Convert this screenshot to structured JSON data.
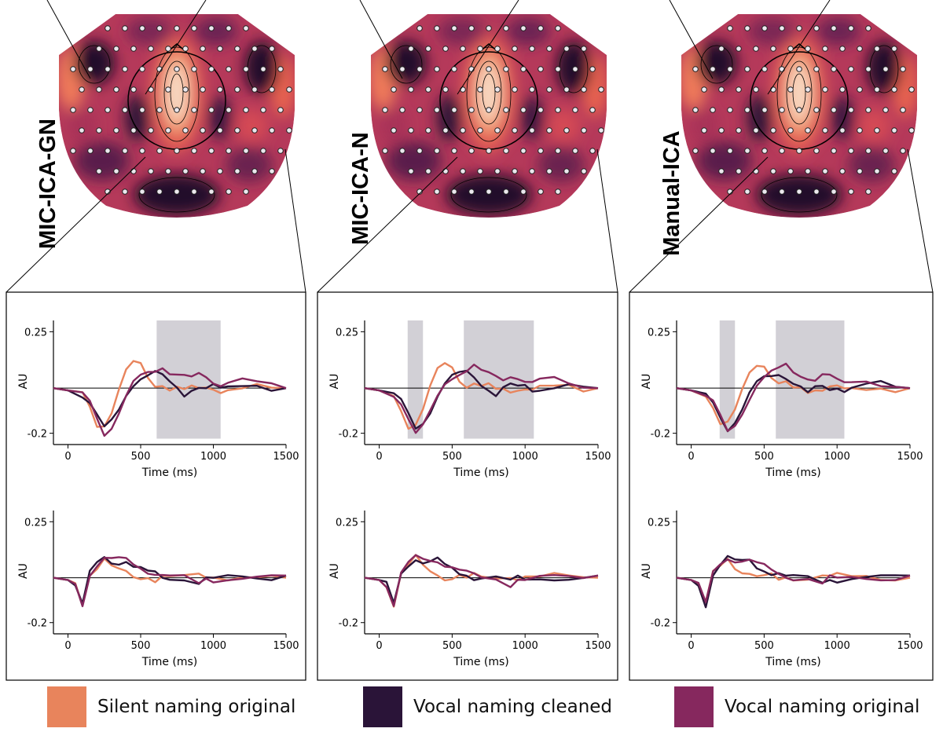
{
  "figure": {
    "colors": {
      "silent_original": "#e8845c",
      "vocal_cleaned": "#2a1438",
      "vocal_original": "#86285e",
      "significance_shade": "#d2d0d6",
      "topo_high": "#f6d8c4",
      "topo_mid": "#d94456",
      "topo_low": "#200c2c"
    },
    "legend": [
      {
        "label": "Silent naming original",
        "color": "#e8845c"
      },
      {
        "label": "Vocal naming cleaned",
        "color": "#2a1438"
      },
      {
        "label": "Vocal naming original",
        "color": "#86285e"
      }
    ]
  },
  "chart_data": [
    {
      "type": "line",
      "panel": "MIC-ICA-GN",
      "method_label": "MIC-ICA-GN",
      "plot": "upper",
      "xlabel": "Time (ms)",
      "ylabel": "AU",
      "xticks": [
        0,
        500,
        1000,
        1500
      ],
      "yticks": [
        0.25,
        -0.2
      ],
      "xlim": [
        -100,
        1500
      ],
      "ylim": [
        -0.25,
        0.3
      ],
      "shaded_intervals": [
        [
          610,
          1050
        ]
      ],
      "x": [
        -100,
        0,
        100,
        150,
        200,
        250,
        300,
        350,
        400,
        450,
        500,
        550,
        600,
        650,
        700,
        750,
        800,
        850,
        900,
        950,
        1000,
        1050,
        1100,
        1200,
        1300,
        1400,
        1500
      ],
      "series": [
        {
          "name": "Silent naming original",
          "values": [
            0.0,
            -0.01,
            -0.03,
            -0.09,
            -0.17,
            -0.16,
            -0.1,
            0.0,
            0.08,
            0.11,
            0.1,
            0.04,
            0.01,
            0.02,
            0.0,
            0.01,
            -0.01,
            0.0,
            -0.01,
            0.0,
            0.0,
            -0.01,
            0.0,
            0.0,
            0.01,
            -0.01,
            0.0
          ]
        },
        {
          "name": "Vocal naming cleaned",
          "values": [
            0.0,
            -0.01,
            -0.03,
            -0.06,
            -0.12,
            -0.18,
            -0.15,
            -0.1,
            -0.03,
            0.02,
            0.05,
            0.06,
            0.07,
            0.05,
            0.02,
            0.0,
            -0.03,
            0.0,
            0.01,
            0.0,
            0.01,
            -0.01,
            0.0,
            0.01,
            0.02,
            0.0,
            0.0
          ]
        },
        {
          "name": "Vocal naming original",
          "values": [
            0.0,
            -0.01,
            -0.03,
            -0.06,
            -0.13,
            -0.2,
            -0.17,
            -0.11,
            -0.04,
            0.02,
            0.05,
            0.07,
            0.08,
            0.1,
            0.07,
            0.06,
            0.05,
            0.04,
            0.06,
            0.05,
            0.03,
            0.02,
            0.03,
            0.04,
            0.02,
            0.01,
            0.0
          ]
        }
      ]
    },
    {
      "type": "line",
      "panel": "MIC-ICA-GN",
      "plot": "lower",
      "xlabel": "Time (ms)",
      "ylabel": "AU",
      "xticks": [
        0,
        500,
        1000,
        1500
      ],
      "yticks": [
        0.25,
        -0.2
      ],
      "xlim": [
        -100,
        1500
      ],
      "ylim": [
        -0.25,
        0.3
      ],
      "shaded_intervals": [],
      "x": [
        -100,
        0,
        50,
        100,
        150,
        200,
        250,
        300,
        350,
        400,
        450,
        500,
        550,
        600,
        650,
        700,
        800,
        900,
        950,
        1000,
        1100,
        1200,
        1300,
        1400,
        1500
      ],
      "series": [
        {
          "name": "Silent naming original",
          "values": [
            0.0,
            -0.01,
            -0.03,
            -0.12,
            0.02,
            0.05,
            0.09,
            0.05,
            0.03,
            0.02,
            0.0,
            0.0,
            0.01,
            -0.01,
            0.01,
            0.0,
            0.0,
            0.01,
            0.0,
            0.01,
            0.0,
            0.01,
            0.0,
            0.0,
            0.0
          ]
        },
        {
          "name": "Vocal naming cleaned",
          "values": [
            0.0,
            -0.01,
            -0.03,
            -0.12,
            0.02,
            0.06,
            0.09,
            0.07,
            0.07,
            0.08,
            0.05,
            0.04,
            0.02,
            0.02,
            0.0,
            0.0,
            0.0,
            -0.02,
            0.0,
            -0.01,
            0.0,
            0.0,
            0.0,
            0.0,
            0.01
          ]
        },
        {
          "name": "Vocal naming original",
          "values": [
            0.0,
            -0.01,
            -0.03,
            -0.12,
            0.02,
            0.06,
            0.09,
            0.08,
            0.08,
            0.08,
            0.06,
            0.05,
            0.03,
            0.02,
            0.01,
            0.0,
            0.0,
            -0.03,
            0.0,
            -0.01,
            0.0,
            0.0,
            0.0,
            0.0,
            0.01
          ]
        }
      ]
    },
    {
      "type": "line",
      "panel": "MIC-ICA-N",
      "method_label": "MIC-ICA-N",
      "plot": "upper",
      "xlabel": "Time (ms)",
      "ylabel": "AU",
      "xticks": [
        0,
        500,
        1000,
        1500
      ],
      "yticks": [
        0.25,
        -0.2
      ],
      "xlim": [
        -100,
        1500
      ],
      "ylim": [
        -0.25,
        0.3
      ],
      "shaded_intervals": [
        [
          195,
          300
        ],
        [
          580,
          1060
        ]
      ],
      "x": [
        -100,
        0,
        100,
        150,
        200,
        250,
        300,
        350,
        400,
        450,
        500,
        550,
        600,
        650,
        700,
        750,
        800,
        850,
        900,
        950,
        1000,
        1050,
        1100,
        1200,
        1300,
        1400,
        1500
      ],
      "series": [
        {
          "name": "Silent naming original",
          "values": [
            0.0,
            -0.01,
            -0.03,
            -0.09,
            -0.17,
            -0.16,
            -0.1,
            0.0,
            0.08,
            0.11,
            0.1,
            0.04,
            0.01,
            0.02,
            0.0,
            0.01,
            -0.01,
            0.0,
            -0.01,
            0.0,
            0.0,
            -0.01,
            0.0,
            0.0,
            0.01,
            -0.01,
            0.0
          ]
        },
        {
          "name": "Vocal naming cleaned",
          "values": [
            0.0,
            -0.01,
            -0.03,
            -0.06,
            -0.12,
            -0.18,
            -0.15,
            -0.1,
            -0.03,
            0.02,
            0.05,
            0.06,
            0.07,
            0.05,
            0.02,
            0.0,
            -0.03,
            0.0,
            0.01,
            0.0,
            0.01,
            -0.01,
            0.0,
            0.01,
            0.02,
            0.0,
            0.0
          ]
        },
        {
          "name": "Vocal naming original",
          "values": [
            0.0,
            -0.01,
            -0.03,
            -0.06,
            -0.13,
            -0.2,
            -0.17,
            -0.11,
            -0.04,
            0.02,
            0.05,
            0.07,
            0.08,
            0.1,
            0.07,
            0.06,
            0.05,
            0.04,
            0.06,
            0.05,
            0.03,
            0.02,
            0.03,
            0.04,
            0.02,
            0.01,
            0.0
          ]
        }
      ]
    },
    {
      "type": "line",
      "panel": "MIC-ICA-N",
      "plot": "lower",
      "xlabel": "Time (ms)",
      "ylabel": "AU",
      "xticks": [
        0,
        500,
        1000,
        1500
      ],
      "yticks": [
        0.25,
        -0.2
      ],
      "xlim": [
        -100,
        1500
      ],
      "ylim": [
        -0.25,
        0.3
      ],
      "shaded_intervals": [],
      "x": [
        -100,
        0,
        50,
        100,
        150,
        200,
        250,
        300,
        350,
        400,
        450,
        500,
        550,
        600,
        650,
        700,
        800,
        900,
        950,
        1000,
        1100,
        1200,
        1300,
        1400,
        1500
      ],
      "series": [
        {
          "name": "Silent naming original",
          "values": [
            0.0,
            -0.01,
            -0.03,
            -0.12,
            0.02,
            0.05,
            0.09,
            0.05,
            0.03,
            0.02,
            0.0,
            0.0,
            0.01,
            -0.01,
            0.01,
            0.0,
            0.0,
            0.01,
            0.0,
            0.01,
            0.0,
            0.01,
            0.0,
            0.0,
            0.0
          ]
        },
        {
          "name": "Vocal naming cleaned",
          "values": [
            0.0,
            -0.01,
            -0.03,
            -0.12,
            0.02,
            0.06,
            0.09,
            0.07,
            0.07,
            0.08,
            0.05,
            0.04,
            0.02,
            0.02,
            0.0,
            0.0,
            0.0,
            -0.02,
            0.0,
            -0.01,
            0.0,
            0.0,
            0.0,
            0.0,
            0.01
          ]
        },
        {
          "name": "Vocal naming original",
          "values": [
            0.0,
            -0.01,
            -0.03,
            -0.12,
            0.02,
            0.06,
            0.09,
            0.08,
            0.08,
            0.08,
            0.06,
            0.05,
            0.03,
            0.02,
            0.01,
            0.0,
            0.0,
            -0.03,
            0.0,
            -0.01,
            0.0,
            0.0,
            0.0,
            0.0,
            0.01
          ]
        }
      ]
    },
    {
      "type": "line",
      "panel": "Manual-ICA",
      "method_label": "Manual-ICA",
      "plot": "upper",
      "xlabel": "Time (ms)",
      "ylabel": "AU",
      "xticks": [
        0,
        500,
        1000,
        1500
      ],
      "yticks": [
        0.25,
        -0.2
      ],
      "xlim": [
        -100,
        1500
      ],
      "ylim": [
        -0.25,
        0.3
      ],
      "shaded_intervals": [
        [
          195,
          300
        ],
        [
          580,
          1050
        ]
      ],
      "x": [
        -100,
        0,
        100,
        150,
        200,
        250,
        300,
        350,
        400,
        450,
        500,
        550,
        600,
        650,
        700,
        750,
        800,
        850,
        900,
        950,
        1000,
        1050,
        1100,
        1200,
        1300,
        1400,
        1500
      ],
      "series": [
        {
          "name": "Silent naming original",
          "values": [
            0.0,
            -0.01,
            -0.03,
            -0.09,
            -0.17,
            -0.16,
            -0.1,
            0.0,
            0.08,
            0.11,
            0.1,
            0.04,
            0.01,
            0.02,
            0.0,
            0.01,
            -0.01,
            0.0,
            -0.01,
            0.0,
            0.0,
            -0.01,
            0.0,
            0.0,
            0.01,
            -0.01,
            0.0
          ]
        },
        {
          "name": "Vocal naming cleaned",
          "values": [
            0.0,
            -0.01,
            -0.03,
            -0.06,
            -0.12,
            -0.18,
            -0.15,
            -0.1,
            -0.03,
            0.02,
            0.05,
            0.06,
            0.07,
            0.05,
            0.02,
            0.0,
            -0.03,
            0.0,
            0.01,
            0.0,
            0.01,
            -0.01,
            0.0,
            0.01,
            0.02,
            0.0,
            0.0
          ]
        },
        {
          "name": "Vocal naming original",
          "values": [
            0.0,
            -0.01,
            -0.03,
            -0.06,
            -0.13,
            -0.2,
            -0.17,
            -0.11,
            -0.04,
            0.02,
            0.05,
            0.07,
            0.08,
            0.1,
            0.07,
            0.06,
            0.05,
            0.04,
            0.06,
            0.05,
            0.03,
            0.02,
            0.03,
            0.04,
            0.02,
            0.01,
            0.0
          ]
        }
      ]
    },
    {
      "type": "line",
      "panel": "Manual-ICA",
      "plot": "lower",
      "xlabel": "Time (ms)",
      "ylabel": "AU",
      "xticks": [
        0,
        500,
        1000,
        1500
      ],
      "yticks": [
        0.25,
        -0.2
      ],
      "xlim": [
        -100,
        1500
      ],
      "ylim": [
        -0.25,
        0.3
      ],
      "shaded_intervals": [],
      "x": [
        -100,
        0,
        50,
        100,
        150,
        200,
        250,
        300,
        350,
        400,
        450,
        500,
        550,
        600,
        650,
        700,
        800,
        900,
        950,
        1000,
        1100,
        1200,
        1300,
        1400,
        1500
      ],
      "series": [
        {
          "name": "Silent naming original",
          "values": [
            0.0,
            -0.01,
            -0.03,
            -0.12,
            0.02,
            0.05,
            0.09,
            0.05,
            0.03,
            0.02,
            0.0,
            0.0,
            0.01,
            -0.01,
            0.01,
            0.0,
            0.0,
            0.01,
            0.0,
            0.01,
            0.0,
            0.01,
            0.0,
            0.0,
            0.0
          ]
        },
        {
          "name": "Vocal naming cleaned",
          "values": [
            0.0,
            -0.01,
            -0.03,
            -0.12,
            0.02,
            0.06,
            0.09,
            0.07,
            0.07,
            0.08,
            0.05,
            0.04,
            0.02,
            0.02,
            0.0,
            0.0,
            0.0,
            -0.02,
            0.0,
            -0.01,
            0.0,
            0.0,
            0.0,
            0.0,
            0.01
          ]
        },
        {
          "name": "Vocal naming original",
          "values": [
            0.0,
            -0.01,
            -0.03,
            -0.12,
            0.02,
            0.06,
            0.09,
            0.08,
            0.08,
            0.08,
            0.06,
            0.05,
            0.03,
            0.02,
            0.01,
            0.0,
            0.0,
            -0.03,
            0.0,
            -0.01,
            0.0,
            0.0,
            0.0,
            0.0,
            0.01
          ]
        }
      ]
    }
  ]
}
